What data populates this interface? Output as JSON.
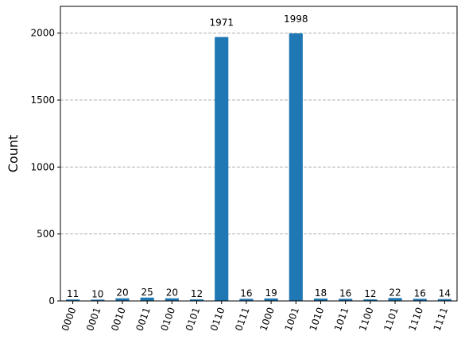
{
  "chart_data": {
    "type": "bar",
    "categories": [
      "0000",
      "0001",
      "0010",
      "0011",
      "0100",
      "0101",
      "0110",
      "0111",
      "1000",
      "1001",
      "1010",
      "1011",
      "1100",
      "1101",
      "1110",
      "1111"
    ],
    "values": [
      11,
      10,
      20,
      25,
      20,
      12,
      1971,
      16,
      19,
      1998,
      18,
      16,
      12,
      22,
      16,
      14
    ],
    "data_labels": [
      "11",
      "10",
      "20",
      "25",
      "20",
      "12",
      "1971",
      "16",
      "19",
      "1998",
      "18",
      "16",
      "12",
      "22",
      "16",
      "14"
    ],
    "xlabel": "",
    "ylabel": "Count",
    "ylim": [
      0,
      2200
    ],
    "yticks": [
      0,
      500,
      1000,
      1500,
      2000
    ],
    "ytick_labels": [
      "0",
      "500",
      "1000",
      "1500",
      "2000"
    ],
    "grid": "horizontal dashed",
    "bar_color": "#1f77b4"
  }
}
